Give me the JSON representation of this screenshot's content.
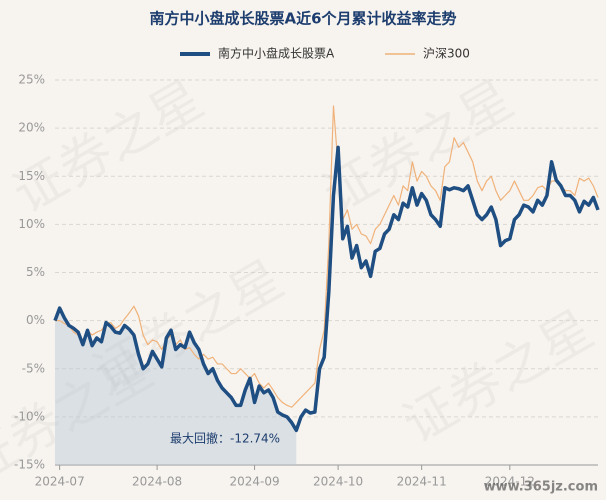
{
  "chart_data": {
    "type": "line",
    "title": "南方中小盘成长股票A近6个月累计收益率走势",
    "annotation": "最大回撤：-12.74%",
    "watermark": "证券之星",
    "source_watermark": "www.365jz.com",
    "grid": true,
    "legend": "top",
    "ylim": [
      -15,
      25
    ],
    "yticks": [
      {
        "value": -15,
        "label": "-15%"
      },
      {
        "value": -10,
        "label": "-10%"
      },
      {
        "value": -5,
        "label": "-5%"
      },
      {
        "value": 0,
        "label": "0%"
      },
      {
        "value": 5,
        "label": "5%"
      },
      {
        "value": 10,
        "label": "10%"
      },
      {
        "value": 15,
        "label": "15%"
      },
      {
        "value": 20,
        "label": "20%"
      },
      {
        "value": 25,
        "label": "25%"
      }
    ],
    "categories": [
      null,
      "2024-07",
      null,
      null,
      null,
      null,
      null,
      null,
      null,
      null,
      null,
      null,
      null,
      null,
      null,
      null,
      null,
      null,
      null,
      null,
      null,
      null,
      "2024-08",
      null,
      null,
      null,
      null,
      null,
      null,
      null,
      null,
      null,
      null,
      null,
      null,
      null,
      null,
      null,
      null,
      null,
      null,
      null,
      null,
      "2024-09",
      null,
      null,
      null,
      null,
      null,
      null,
      null,
      null,
      null,
      null,
      null,
      null,
      null,
      null,
      null,
      null,
      null,
      "2024-10",
      null,
      null,
      null,
      null,
      null,
      null,
      null,
      null,
      null,
      null,
      null,
      null,
      null,
      null,
      null,
      null,
      null,
      "2024-11",
      null,
      null,
      null,
      null,
      null,
      null,
      null,
      null,
      null,
      null,
      null,
      null,
      null,
      null,
      null,
      null,
      null,
      null,
      "2024-12",
      null,
      null,
      null,
      null,
      null,
      null,
      null,
      null,
      null,
      null,
      null,
      null,
      null,
      null,
      null,
      null,
      null,
      null,
      null
    ],
    "series": [
      {
        "name": "南方中小盘成长股票A",
        "color": "#1f4e82",
        "values": [
          0,
          1.3,
          0.3,
          -0.5,
          -0.8,
          -1.2,
          -2.5,
          -1.0,
          -2.6,
          -1.8,
          -2.2,
          -0.2,
          -0.6,
          -1.2,
          -1.3,
          -0.5,
          -0.9,
          -1.5,
          -3.5,
          -5.0,
          -4.5,
          -3.2,
          -4.0,
          -4.8,
          -1.8,
          -1.0,
          -3.0,
          -2.5,
          -2.8,
          -1.2,
          -2.3,
          -3.0,
          -4.5,
          -5.5,
          -5.0,
          -6.2,
          -7.0,
          -7.5,
          -8.0,
          -8.8,
          -8.8,
          -7.2,
          -6.0,
          -8.5,
          -6.8,
          -7.5,
          -7.2,
          -8.0,
          -9.5,
          -9.8,
          -10.0,
          -10.6,
          -11.4,
          -10.0,
          -9.3,
          -9.6,
          -9.5,
          -5.0,
          -3.8,
          3.0,
          13.0,
          18.0,
          8.5,
          9.8,
          6.5,
          7.8,
          5.5,
          6.2,
          4.6,
          7.2,
          7.5,
          9.0,
          9.5,
          11.0,
          10.5,
          12.2,
          11.8,
          13.8,
          12.0,
          13.2,
          12.5,
          11.0,
          10.5,
          9.8,
          13.8,
          13.6,
          13.8,
          13.7,
          13.5,
          14.0,
          12.5,
          11.0,
          10.5,
          11.0,
          11.8,
          10.5,
          7.8,
          8.3,
          8.5,
          10.5,
          11.0,
          12.0,
          11.8,
          11.3,
          12.5,
          12.0,
          13.0,
          16.5,
          14.6,
          14.0,
          13.0,
          13.0,
          12.5,
          11.3,
          12.4,
          12.0,
          12.8,
          11.5
        ]
      },
      {
        "name": "沪深300",
        "color": "#f0b27a",
        "values": [
          0,
          0,
          -0.3,
          -0.5,
          -1.2,
          -1.5,
          -2.0,
          -1.0,
          -1.5,
          -1.2,
          -1.0,
          -0.3,
          -0.2,
          -0.8,
          -0.5,
          0.2,
          0.8,
          1.5,
          0.5,
          -1.5,
          -2.5,
          -2.0,
          -2.2,
          -3.0,
          -2.0,
          -1.5,
          -2.5,
          -2.0,
          -3.0,
          -2.8,
          -3.5,
          -4.0,
          -3.5,
          -4.0,
          -3.8,
          -4.5,
          -4.5,
          -5.0,
          -5.5,
          -5.5,
          -5.0,
          -5.5,
          -6.0,
          -5.5,
          -6.5,
          -7.0,
          -6.5,
          -7.2,
          -8.0,
          -8.5,
          -8.8,
          -9.0,
          -8.5,
          -8.0,
          -7.5,
          -7.0,
          -6.5,
          -3.0,
          -1.0,
          8.0,
          22.3,
          16.0,
          10.5,
          11.5,
          9.5,
          10.0,
          9.0,
          8.8,
          8.0,
          9.5,
          10.0,
          11.0,
          12.0,
          13.0,
          12.0,
          14.0,
          13.5,
          16.5,
          14.5,
          15.5,
          15.0,
          14.0,
          13.5,
          12.5,
          16.0,
          16.5,
          19.0,
          18.0,
          18.5,
          17.5,
          16.5,
          14.5,
          13.5,
          14.5,
          15.0,
          13.5,
          12.5,
          13.0,
          13.5,
          14.5,
          13.5,
          12.5,
          12.5,
          13.0,
          13.8,
          14.0,
          13.5,
          14.5,
          14.5,
          14.0,
          13.5,
          13.5,
          13.0,
          14.8,
          14.5,
          14.8,
          14.0,
          12.8
        ]
      }
    ]
  }
}
